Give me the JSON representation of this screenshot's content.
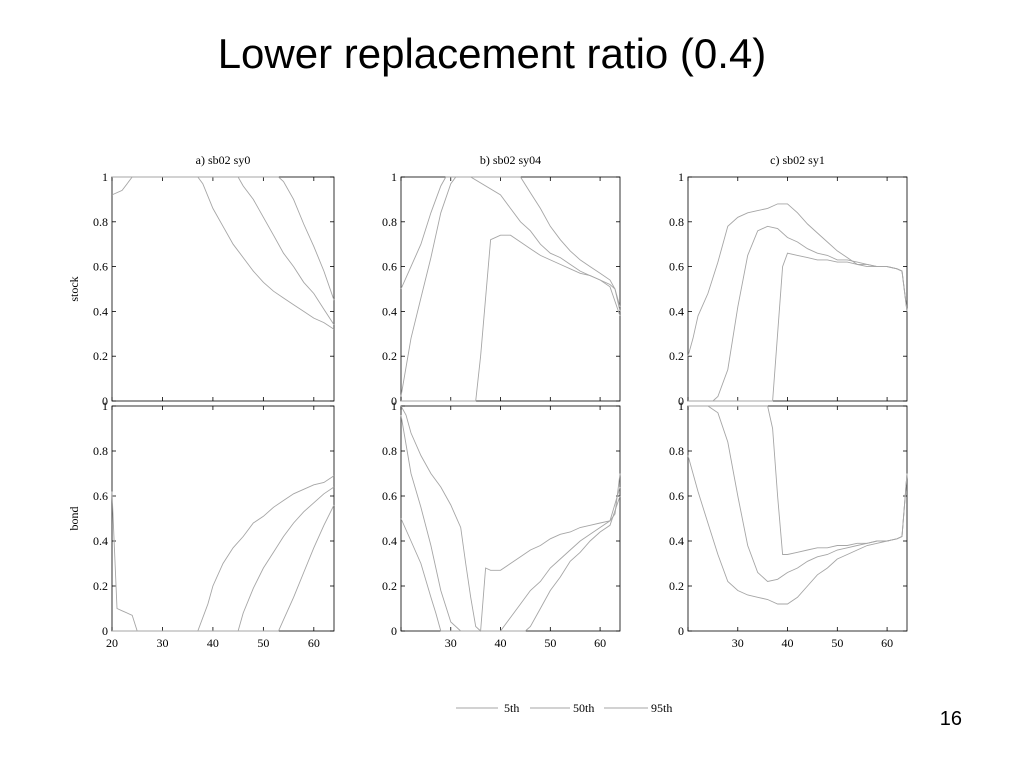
{
  "slide": {
    "title": "Lower replacement ratio (0.4)",
    "page_number": "16"
  },
  "chart_data": {
    "type": "line",
    "legend": {
      "entries": [
        "5th",
        "50th",
        "95th"
      ],
      "placement": "bottom-center"
    },
    "series_color": "#a6a6a6",
    "xlim": [
      20,
      64
    ],
    "ylim": [
      0,
      1
    ],
    "yticks": [
      0,
      0.2,
      0.4,
      0.6,
      0.8,
      1
    ],
    "grid": false,
    "panels": [
      {
        "row": "stock",
        "col": 0,
        "title": "a) sb02 sy0",
        "ylabel": "stock",
        "xticks": [],
        "ytick_labels": [
          "0",
          "0.2",
          "0.4",
          "0.6",
          "0.8",
          "1"
        ],
        "series": [
          {
            "name": "5th",
            "x": [
              20,
              22,
              24,
              25,
              30,
              37,
              38,
              40,
              42,
              44,
              46,
              48,
              50,
              52,
              54,
              56,
              58,
              60,
              62,
              64
            ],
            "y": [
              0.92,
              0.94,
              1,
              1,
              1,
              1,
              0.97,
              0.86,
              0.78,
              0.7,
              0.64,
              0.58,
              0.53,
              0.49,
              0.46,
              0.43,
              0.4,
              0.37,
              0.35,
              0.32
            ]
          },
          {
            "name": "50th",
            "x": [
              20,
              25,
              30,
              40,
              45,
              46,
              48,
              50,
              52,
              54,
              56,
              58,
              60,
              62,
              64
            ],
            "y": [
              1,
              1,
              1,
              1,
              1,
              0.96,
              0.9,
              0.82,
              0.74,
              0.66,
              0.6,
              0.53,
              0.48,
              0.41,
              0.34
            ]
          },
          {
            "name": "95th",
            "x": [
              20,
              30,
              40,
              50,
              53,
              54,
              56,
              58,
              60,
              62,
              64
            ],
            "y": [
              1,
              1,
              1,
              1,
              1,
              0.98,
              0.9,
              0.79,
              0.69,
              0.58,
              0.45
            ]
          }
        ]
      },
      {
        "row": "stock",
        "col": 1,
        "title": "b)  sb02 sy04",
        "ylabel": "",
        "xticks": [],
        "ytick_labels": [
          "0",
          "0.2",
          "0.4",
          "0.6",
          "0.8",
          "1"
        ],
        "series": [
          {
            "name": "5th",
            "x": [
              20,
              30,
              33,
              35,
              36,
              38,
              40,
              42,
              44,
              46,
              48,
              50,
              52,
              54,
              56,
              58,
              60,
              62,
              63,
              64
            ],
            "y": [
              0,
              0,
              0,
              0,
              0.2,
              0.72,
              0.74,
              0.74,
              0.71,
              0.68,
              0.65,
              0.63,
              0.61,
              0.59,
              0.57,
              0.56,
              0.54,
              0.52,
              0.5,
              0.4
            ]
          },
          {
            "name": "50th",
            "x": [
              20,
              22,
              24,
              26,
              28,
              30,
              31,
              34,
              40,
              42,
              44,
              46,
              48,
              50,
              52,
              54,
              56,
              58,
              60,
              62,
              64
            ],
            "y": [
              0.02,
              0.28,
              0.46,
              0.64,
              0.84,
              0.97,
              1,
              1,
              0.92,
              0.86,
              0.8,
              0.76,
              0.7,
              0.66,
              0.64,
              0.61,
              0.58,
              0.56,
              0.54,
              0.51,
              0.38
            ]
          },
          {
            "name": "95th",
            "x": [
              20,
              22,
              24,
              26,
              28,
              29,
              30,
              40,
              44,
              46,
              48,
              50,
              52,
              54,
              56,
              58,
              60,
              62,
              63,
              64
            ],
            "y": [
              0.5,
              0.6,
              0.7,
              0.84,
              0.96,
              1,
              1,
              1,
              1,
              0.93,
              0.86,
              0.78,
              0.72,
              0.67,
              0.63,
              0.6,
              0.57,
              0.54,
              0.5,
              0.42
            ]
          }
        ]
      },
      {
        "row": "stock",
        "col": 2,
        "title": "c) sb02 sy1",
        "ylabel": "",
        "xticks": [],
        "ytick_labels": [
          "0",
          "0.2",
          "0.4",
          "0.6",
          "0.8",
          "1"
        ],
        "series": [
          {
            "name": "5th",
            "x": [
              20,
              30,
              37,
              38,
              39,
              40,
              42,
              44,
              46,
              48,
              50,
              52,
              54,
              56,
              58,
              60,
              62,
              63,
              64
            ],
            "y": [
              0,
              0,
              0,
              0.3,
              0.6,
              0.66,
              0.65,
              0.64,
              0.63,
              0.63,
              0.62,
              0.62,
              0.61,
              0.61,
              0.6,
              0.6,
              0.59,
              0.58,
              0.4
            ]
          },
          {
            "name": "50th",
            "x": [
              20,
              25,
              26,
              28,
              30,
              32,
              34,
              36,
              38,
              40,
              42,
              44,
              46,
              48,
              50,
              52,
              54,
              56,
              58,
              60,
              62,
              63,
              64
            ],
            "y": [
              0,
              0,
              0.02,
              0.14,
              0.42,
              0.65,
              0.76,
              0.78,
              0.77,
              0.73,
              0.71,
              0.68,
              0.66,
              0.65,
              0.63,
              0.63,
              0.62,
              0.61,
              0.6,
              0.6,
              0.59,
              0.58,
              0.4
            ]
          },
          {
            "name": "95th",
            "x": [
              20,
              21,
              22,
              24,
              26,
              28,
              30,
              32,
              34,
              36,
              38,
              40,
              42,
              44,
              46,
              48,
              50,
              52,
              54,
              56,
              58,
              60,
              62,
              63,
              64
            ],
            "y": [
              0.2,
              0.28,
              0.38,
              0.48,
              0.62,
              0.78,
              0.82,
              0.84,
              0.85,
              0.86,
              0.88,
              0.88,
              0.84,
              0.79,
              0.75,
              0.71,
              0.67,
              0.64,
              0.61,
              0.6,
              0.6,
              0.6,
              0.59,
              0.58,
              0.4
            ]
          }
        ]
      },
      {
        "row": "bond",
        "col": 0,
        "title": "",
        "ylabel": "bond",
        "xticks": [
          20,
          30,
          40,
          50,
          60
        ],
        "ytick_labels": [
          "0",
          "0.2",
          "0.4",
          "0.6",
          "0.8",
          "1"
        ],
        "series": [
          {
            "name": "5th",
            "x": [
              20,
              21,
              22,
              24,
              25,
              30,
              37,
              39,
              40,
              42,
              44,
              46,
              48,
              50,
              52,
              54,
              56,
              58,
              60,
              62,
              64
            ],
            "y": [
              0.62,
              0.1,
              0.09,
              0.07,
              0,
              0,
              0,
              0.12,
              0.2,
              0.3,
              0.37,
              0.42,
              0.48,
              0.51,
              0.55,
              0.58,
              0.61,
              0.63,
              0.65,
              0.66,
              0.69
            ]
          },
          {
            "name": "50th",
            "x": [
              20,
              30,
              40,
              44,
              45,
              46,
              48,
              50,
              52,
              54,
              56,
              58,
              60,
              62,
              64
            ],
            "y": [
              0,
              0,
              0,
              0,
              0,
              0.08,
              0.19,
              0.28,
              0.35,
              0.42,
              0.48,
              0.53,
              0.57,
              0.61,
              0.64
            ]
          },
          {
            "name": "95th",
            "x": [
              20,
              30,
              40,
              50,
              53,
              54,
              56,
              58,
              60,
              62,
              64
            ],
            "y": [
              0,
              0,
              0,
              0,
              0,
              0.05,
              0.15,
              0.26,
              0.37,
              0.47,
              0.56
            ]
          }
        ]
      },
      {
        "row": "bond",
        "col": 1,
        "title": "",
        "ylabel": "",
        "xticks": [
          30,
          40,
          50,
          60
        ],
        "ytick_labels": [
          "0",
          "0.2",
          "0.4",
          "0.6",
          "0.8",
          "1"
        ],
        "series": [
          {
            "name": "5th",
            "x": [
              20,
              21,
              22,
              24,
              26,
              28,
              30,
              32,
              33,
              34,
              35,
              36,
              37,
              38,
              40,
              42,
              44,
              46,
              48,
              50,
              52,
              54,
              56,
              58,
              60,
              62,
              63,
              64
            ],
            "y": [
              1,
              0.96,
              0.88,
              0.78,
              0.7,
              0.64,
              0.56,
              0.46,
              0.3,
              0.15,
              0.02,
              0,
              0.28,
              0.27,
              0.27,
              0.3,
              0.33,
              0.36,
              0.38,
              0.41,
              0.43,
              0.44,
              0.46,
              0.47,
              0.48,
              0.49,
              0.52,
              0.7
            ]
          },
          {
            "name": "50th",
            "x": [
              20,
              22,
              24,
              26,
              28,
              30,
              32,
              34,
              40,
              42,
              44,
              46,
              48,
              50,
              52,
              54,
              56,
              58,
              60,
              62,
              64
            ],
            "y": [
              0.96,
              0.7,
              0.55,
              0.38,
              0.18,
              0.04,
              0,
              0,
              0,
              0.06,
              0.12,
              0.18,
              0.22,
              0.28,
              0.32,
              0.36,
              0.4,
              0.43,
              0.46,
              0.49,
              0.64
            ]
          },
          {
            "name": "95th",
            "x": [
              20,
              22,
              24,
              26,
              27,
              28,
              30,
              40,
              45,
              46,
              48,
              50,
              52,
              54,
              56,
              58,
              60,
              62,
              64
            ],
            "y": [
              0.5,
              0.4,
              0.3,
              0.15,
              0.08,
              0,
              0,
              0,
              0,
              0.02,
              0.1,
              0.18,
              0.24,
              0.31,
              0.35,
              0.4,
              0.44,
              0.47,
              0.6
            ]
          }
        ]
      },
      {
        "row": "bond",
        "col": 2,
        "title": "",
        "ylabel": "",
        "xticks": [
          30,
          40,
          50,
          60
        ],
        "ytick_labels": [
          "0",
          "0.2",
          "0.4",
          "0.6",
          "0.8",
          "1"
        ],
        "series": [
          {
            "name": "5th",
            "x": [
              20,
              30,
              36,
              37,
              38,
              39,
              40,
              42,
              44,
              46,
              48,
              50,
              52,
              54,
              56,
              58,
              60,
              62,
              63,
              64
            ],
            "y": [
              1,
              1,
              1,
              0.9,
              0.6,
              0.34,
              0.34,
              0.35,
              0.36,
              0.37,
              0.37,
              0.38,
              0.38,
              0.39,
              0.39,
              0.4,
              0.4,
              0.41,
              0.42,
              0.7
            ]
          },
          {
            "name": "50th",
            "x": [
              20,
              24,
              26,
              28,
              30,
              32,
              34,
              36,
              38,
              40,
              42,
              44,
              46,
              48,
              50,
              52,
              54,
              56,
              58,
              60,
              62,
              63,
              64
            ],
            "y": [
              1,
              1,
              0.97,
              0.84,
              0.6,
              0.38,
              0.26,
              0.22,
              0.23,
              0.26,
              0.28,
              0.31,
              0.33,
              0.34,
              0.36,
              0.37,
              0.38,
              0.39,
              0.4,
              0.4,
              0.41,
              0.42,
              0.7
            ]
          },
          {
            "name": "95th",
            "x": [
              20,
              22,
              24,
              26,
              28,
              30,
              32,
              34,
              36,
              38,
              39,
              40,
              42,
              44,
              46,
              48,
              50,
              52,
              54,
              56,
              58,
              60,
              62,
              63,
              64
            ],
            "y": [
              0.78,
              0.62,
              0.48,
              0.34,
              0.22,
              0.18,
              0.16,
              0.15,
              0.14,
              0.12,
              0.12,
              0.12,
              0.15,
              0.2,
              0.25,
              0.28,
              0.32,
              0.34,
              0.36,
              0.38,
              0.39,
              0.4,
              0.41,
              0.42,
              0.7
            ]
          }
        ]
      }
    ]
  }
}
